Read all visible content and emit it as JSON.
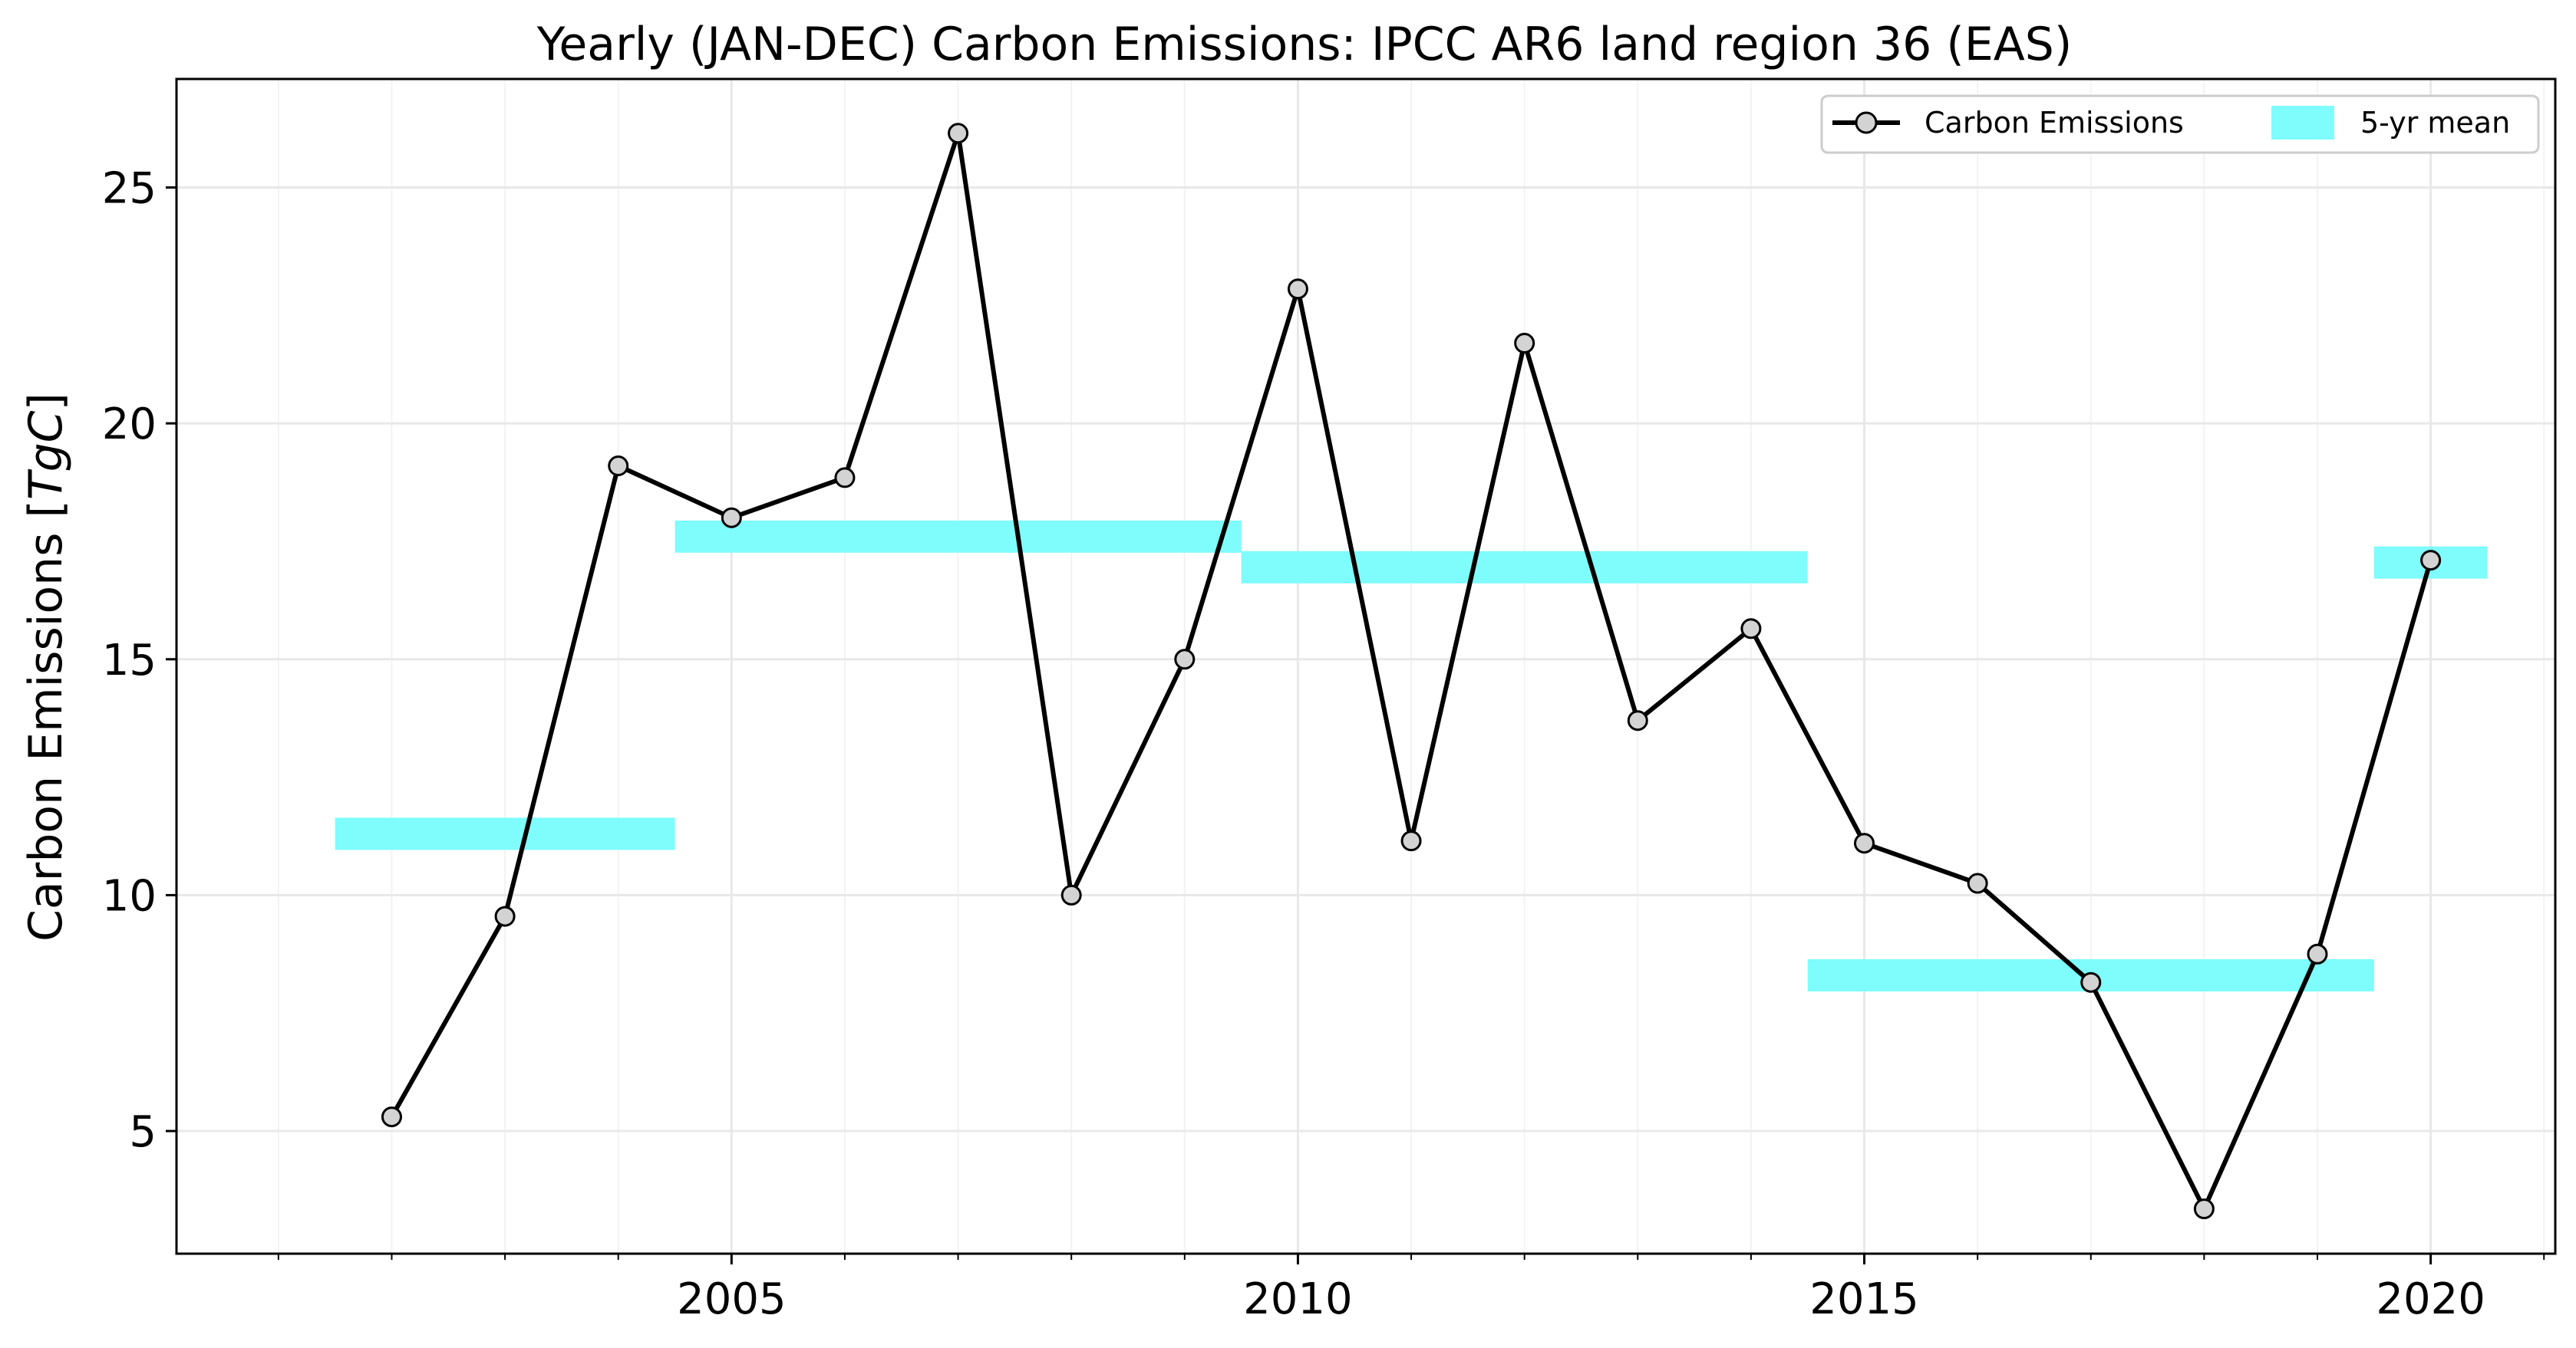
{
  "chart_data": {
    "type": "line",
    "title": "Yearly (JAN-DEC) Carbon Emissions: IPCC AR6 land region 36 (EAS)",
    "xlabel": "",
    "ylabel": "Carbon Emissions [",
    "ylabel_unit": "TgC",
    "ylabel_close": "]",
    "xlim": [
      2000.1,
      2021.1
    ],
    "ylim": [
      2.4,
      27.3
    ],
    "x_ticks": [
      2005,
      2010,
      2015,
      2020
    ],
    "x_tick_labels": [
      "2005",
      "2010",
      "2015",
      "2020"
    ],
    "x_minor_ticks": [
      2001,
      2002,
      2003,
      2004,
      2006,
      2007,
      2008,
      2009,
      2011,
      2012,
      2013,
      2014,
      2016,
      2017,
      2018,
      2019,
      2021
    ],
    "y_ticks": [
      5,
      10,
      15,
      20,
      25
    ],
    "y_tick_labels": [
      "5",
      "10",
      "15",
      "20",
      "25"
    ],
    "grid": true,
    "legend_position": "top-right",
    "series": [
      {
        "name": "Carbon Emissions",
        "kind": "line-marker",
        "color": "#000000",
        "marker_fill": "#d3d3d3",
        "x": [
          2002,
          2003,
          2004,
          2005,
          2006,
          2007,
          2008,
          2009,
          2010,
          2011,
          2012,
          2013,
          2014,
          2015,
          2016,
          2017,
          2018,
          2019,
          2020
        ],
        "y": [
          5.3,
          9.55,
          19.1,
          18.0,
          18.85,
          26.15,
          10.0,
          15.0,
          22.85,
          11.15,
          21.7,
          13.7,
          15.65,
          11.1,
          10.25,
          8.15,
          3.35,
          8.75,
          17.1
        ]
      },
      {
        "name": "5-yr mean",
        "kind": "band",
        "color": "#7ffcfc",
        "segments": [
          {
            "x_start": 2001.5,
            "x_end": 2004.5,
            "y": 11.3
          },
          {
            "x_start": 2004.5,
            "x_end": 2009.5,
            "y": 17.6
          },
          {
            "x_start": 2009.5,
            "x_end": 2014.5,
            "y": 16.95
          },
          {
            "x_start": 2014.5,
            "x_end": 2019.5,
            "y": 8.3
          },
          {
            "x_start": 2019.5,
            "x_end": 2020.5,
            "y": 17.05
          }
        ]
      }
    ]
  }
}
